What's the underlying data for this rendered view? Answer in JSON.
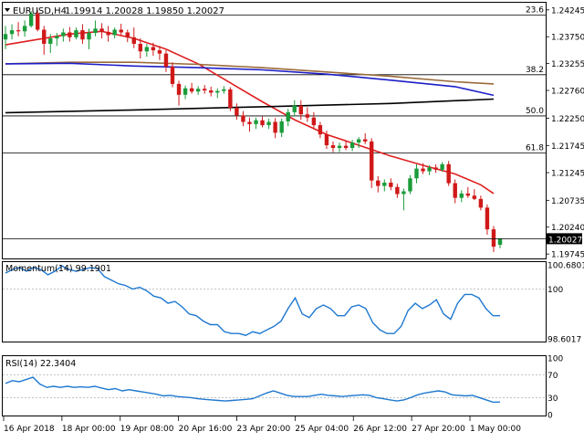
{
  "chart_data": [
    {
      "type": "candlestick",
      "title": "EURUSD,H4",
      "ohlc_readout": "1.19914 1.20028 1.19850 1.20027",
      "current_price_label": "1.20027",
      "ylim": [
        1.1968,
        1.2436
      ],
      "y_ticks": [
        "1.24245",
        "1.23750",
        "1.23255",
        "1.22760",
        "1.22250",
        "1.21745",
        "1.21245",
        "1.20735",
        "1.20240",
        "1.19745"
      ],
      "x_tick_labels": [
        "16 Apr 2018",
        "18 Apr 00:00",
        "19 Apr 08:00",
        "20 Apr 16:00",
        "23 Apr 20:00",
        "25 Apr 04:00",
        "26 Apr 12:00",
        "27 Apr 20:00",
        "1 May 00:00"
      ],
      "fib_levels": [
        {
          "label": "23.6",
          "value": 1.2415
        },
        {
          "label": "38.2",
          "value": 1.2305
        },
        {
          "label": "50.0",
          "value": 1.2229
        },
        {
          "label": "61.8",
          "value": 1.2161
        }
      ],
      "price_line": 1.20027,
      "candles": [
        {
          "o": 1.237,
          "h": 1.2395,
          "l": 1.2352,
          "c": 1.238
        },
        {
          "o": 1.238,
          "h": 1.2398,
          "l": 1.237,
          "c": 1.2387
        },
        {
          "o": 1.2387,
          "h": 1.2402,
          "l": 1.2376,
          "c": 1.2385
        },
        {
          "o": 1.2385,
          "h": 1.2405,
          "l": 1.2375,
          "c": 1.2395
        },
        {
          "o": 1.2395,
          "h": 1.2422,
          "l": 1.2392,
          "c": 1.2418
        },
        {
          "o": 1.2418,
          "h": 1.2424,
          "l": 1.2385,
          "c": 1.2388
        },
        {
          "o": 1.2388,
          "h": 1.2395,
          "l": 1.2342,
          "c": 1.2362
        },
        {
          "o": 1.2362,
          "h": 1.238,
          "l": 1.2345,
          "c": 1.2372
        },
        {
          "o": 1.2372,
          "h": 1.2382,
          "l": 1.2358,
          "c": 1.2376
        },
        {
          "o": 1.2376,
          "h": 1.239,
          "l": 1.2366,
          "c": 1.2383
        },
        {
          "o": 1.2383,
          "h": 1.2393,
          "l": 1.2366,
          "c": 1.2374
        },
        {
          "o": 1.2374,
          "h": 1.2392,
          "l": 1.237,
          "c": 1.2387
        },
        {
          "o": 1.2387,
          "h": 1.2398,
          "l": 1.2362,
          "c": 1.237
        },
        {
          "o": 1.237,
          "h": 1.239,
          "l": 1.2352,
          "c": 1.2382
        },
        {
          "o": 1.2382,
          "h": 1.2405,
          "l": 1.2376,
          "c": 1.239
        },
        {
          "o": 1.239,
          "h": 1.24,
          "l": 1.2372,
          "c": 1.2384
        },
        {
          "o": 1.2384,
          "h": 1.2395,
          "l": 1.2366,
          "c": 1.2378
        },
        {
          "o": 1.2378,
          "h": 1.2392,
          "l": 1.2372,
          "c": 1.2388
        },
        {
          "o": 1.2388,
          "h": 1.2399,
          "l": 1.2378,
          "c": 1.2383
        },
        {
          "o": 1.2383,
          "h": 1.2388,
          "l": 1.2365,
          "c": 1.2374
        },
        {
          "o": 1.2374,
          "h": 1.2392,
          "l": 1.2354,
          "c": 1.2362
        },
        {
          "o": 1.2362,
          "h": 1.2372,
          "l": 1.2335,
          "c": 1.2348
        },
        {
          "o": 1.2348,
          "h": 1.2362,
          "l": 1.2338,
          "c": 1.2356
        },
        {
          "o": 1.2356,
          "h": 1.2364,
          "l": 1.234,
          "c": 1.235
        },
        {
          "o": 1.235,
          "h": 1.2358,
          "l": 1.2332,
          "c": 1.2344
        },
        {
          "o": 1.2344,
          "h": 1.235,
          "l": 1.231,
          "c": 1.232
        },
        {
          "o": 1.232,
          "h": 1.2328,
          "l": 1.2282,
          "c": 1.2288
        },
        {
          "o": 1.2288,
          "h": 1.2294,
          "l": 1.2248,
          "c": 1.2268
        },
        {
          "o": 1.2268,
          "h": 1.2285,
          "l": 1.226,
          "c": 1.228
        },
        {
          "o": 1.228,
          "h": 1.229,
          "l": 1.227,
          "c": 1.2274
        },
        {
          "o": 1.2274,
          "h": 1.2284,
          "l": 1.2268,
          "c": 1.2279
        },
        {
          "o": 1.2279,
          "h": 1.2286,
          "l": 1.227,
          "c": 1.2276
        },
        {
          "o": 1.2276,
          "h": 1.2283,
          "l": 1.2265,
          "c": 1.2272
        },
        {
          "o": 1.2272,
          "h": 1.228,
          "l": 1.2262,
          "c": 1.2275
        },
        {
          "o": 1.2275,
          "h": 1.2284,
          "l": 1.227,
          "c": 1.2278
        },
        {
          "o": 1.2278,
          "h": 1.2282,
          "l": 1.2238,
          "c": 1.2244
        },
        {
          "o": 1.2244,
          "h": 1.2252,
          "l": 1.2222,
          "c": 1.223
        },
        {
          "o": 1.223,
          "h": 1.2238,
          "l": 1.221,
          "c": 1.2218
        },
        {
          "o": 1.2218,
          "h": 1.2226,
          "l": 1.22,
          "c": 1.2214
        },
        {
          "o": 1.2214,
          "h": 1.2226,
          "l": 1.2205,
          "c": 1.2221
        },
        {
          "o": 1.2221,
          "h": 1.2228,
          "l": 1.2208,
          "c": 1.2212
        },
        {
          "o": 1.2212,
          "h": 1.2224,
          "l": 1.2205,
          "c": 1.2218
        },
        {
          "o": 1.2218,
          "h": 1.2225,
          "l": 1.2188,
          "c": 1.2198
        },
        {
          "o": 1.2198,
          "h": 1.2224,
          "l": 1.219,
          "c": 1.2219
        },
        {
          "o": 1.2219,
          "h": 1.2242,
          "l": 1.221,
          "c": 1.2236
        },
        {
          "o": 1.2236,
          "h": 1.2258,
          "l": 1.2228,
          "c": 1.2248
        },
        {
          "o": 1.2248,
          "h": 1.2258,
          "l": 1.2222,
          "c": 1.2232
        },
        {
          "o": 1.2232,
          "h": 1.2245,
          "l": 1.2218,
          "c": 1.2226
        },
        {
          "o": 1.2226,
          "h": 1.2236,
          "l": 1.2205,
          "c": 1.2212
        },
        {
          "o": 1.2212,
          "h": 1.2218,
          "l": 1.2188,
          "c": 1.2195
        },
        {
          "o": 1.2195,
          "h": 1.2202,
          "l": 1.2168,
          "c": 1.2175
        },
        {
          "o": 1.2175,
          "h": 1.2182,
          "l": 1.2162,
          "c": 1.217
        },
        {
          "o": 1.217,
          "h": 1.218,
          "l": 1.2162,
          "c": 1.2174
        },
        {
          "o": 1.2174,
          "h": 1.2182,
          "l": 1.2166,
          "c": 1.217
        },
        {
          "o": 1.217,
          "h": 1.2185,
          "l": 1.2164,
          "c": 1.218
        },
        {
          "o": 1.218,
          "h": 1.219,
          "l": 1.217,
          "c": 1.2186
        },
        {
          "o": 1.2186,
          "h": 1.2197,
          "l": 1.2177,
          "c": 1.2182
        },
        {
          "o": 1.2182,
          "h": 1.2188,
          "l": 1.2096,
          "c": 1.211
        },
        {
          "o": 1.211,
          "h": 1.2118,
          "l": 1.2088,
          "c": 1.21
        },
        {
          "o": 1.21,
          "h": 1.2112,
          "l": 1.209,
          "c": 1.2106
        },
        {
          "o": 1.2106,
          "h": 1.2114,
          "l": 1.2092,
          "c": 1.2098
        },
        {
          "o": 1.2098,
          "h": 1.2104,
          "l": 1.2078,
          "c": 1.2085
        },
        {
          "o": 1.2085,
          "h": 1.2095,
          "l": 1.2055,
          "c": 1.209
        },
        {
          "o": 1.209,
          "h": 1.212,
          "l": 1.2085,
          "c": 1.2114
        },
        {
          "o": 1.2114,
          "h": 1.214,
          "l": 1.2105,
          "c": 1.2132
        },
        {
          "o": 1.2132,
          "h": 1.2142,
          "l": 1.2122,
          "c": 1.2127
        },
        {
          "o": 1.2127,
          "h": 1.2138,
          "l": 1.212,
          "c": 1.2134
        },
        {
          "o": 1.2134,
          "h": 1.214,
          "l": 1.2124,
          "c": 1.213
        },
        {
          "o": 1.213,
          "h": 1.2144,
          "l": 1.2126,
          "c": 1.214
        },
        {
          "o": 1.214,
          "h": 1.2146,
          "l": 1.21,
          "c": 1.2105
        },
        {
          "o": 1.2105,
          "h": 1.2112,
          "l": 1.2068,
          "c": 1.2078
        },
        {
          "o": 1.2078,
          "h": 1.2092,
          "l": 1.207,
          "c": 1.2086
        },
        {
          "o": 1.2086,
          "h": 1.2098,
          "l": 1.2078,
          "c": 1.2082
        },
        {
          "o": 1.2082,
          "h": 1.2094,
          "l": 1.2074,
          "c": 1.2076
        },
        {
          "o": 1.2076,
          "h": 1.2082,
          "l": 1.2055,
          "c": 1.206
        },
        {
          "o": 1.206,
          "h": 1.2066,
          "l": 1.201,
          "c": 1.202
        },
        {
          "o": 1.202,
          "h": 1.2026,
          "l": 1.1978,
          "c": 1.1988
        },
        {
          "o": 1.19914,
          "h": 1.20028,
          "l": 1.1985,
          "c": 1.20027
        }
      ],
      "overlays": [
        {
          "name": "ema-red",
          "color": "#e02020",
          "points": [
            [
              0,
              1.236
            ],
            [
              5,
              1.237
            ],
            [
              10,
              1.238
            ],
            [
              15,
              1.2385
            ],
            [
              20,
              1.2372
            ],
            [
              25,
              1.2352
            ],
            [
              30,
              1.2325
            ],
            [
              35,
              1.229
            ],
            [
              40,
              1.2255
            ],
            [
              45,
              1.2222
            ],
            [
              50,
              1.2195
            ],
            [
              55,
              1.2175
            ],
            [
              60,
              1.2155
            ],
            [
              65,
              1.2138
            ],
            [
              70,
              1.2122
            ],
            [
              74,
              1.2102
            ],
            [
              76,
              1.2086
            ]
          ]
        },
        {
          "name": "sma-brown",
          "color": "#9a6a3a",
          "points": [
            [
              0,
              1.2325
            ],
            [
              10,
              1.2328
            ],
            [
              20,
              1.2328
            ],
            [
              30,
              1.2324
            ],
            [
              40,
              1.2318
            ],
            [
              50,
              1.231
            ],
            [
              60,
              1.2302
            ],
            [
              70,
              1.2292
            ],
            [
              76,
              1.2288
            ]
          ]
        },
        {
          "name": "sma-blue",
          "color": "#1e1ec8",
          "points": [
            [
              0,
              1.2325
            ],
            [
              10,
              1.2326
            ],
            [
              20,
              1.2321
            ],
            [
              30,
              1.2318
            ],
            [
              40,
              1.2314
            ],
            [
              50,
              1.2306
            ],
            [
              60,
              1.2295
            ],
            [
              70,
              1.2283
            ],
            [
              76,
              1.2267
            ]
          ]
        },
        {
          "name": "sma-black",
          "color": "#000000",
          "points": [
            [
              0,
              1.2235
            ],
            [
              20,
              1.224
            ],
            [
              40,
              1.2246
            ],
            [
              60,
              1.2252
            ],
            [
              76,
              1.226
            ]
          ]
        }
      ]
    },
    {
      "type": "line",
      "title": "Momentum(14) 99.1901",
      "ylim": [
        98.6017,
        100.6801
      ],
      "y_ticks": [
        "100.6801",
        "100",
        "98.6017"
      ],
      "series": [
        {
          "color": "#1e78d0",
          "values": [
            100.45,
            100.55,
            100.6,
            100.5,
            100.6,
            100.55,
            100.4,
            100.5,
            100.65,
            100.55,
            100.5,
            100.55,
            100.6,
            100.58,
            100.35,
            100.25,
            100.15,
            100.1,
            100.0,
            100.05,
            99.95,
            99.8,
            99.75,
            99.6,
            99.65,
            99.5,
            99.3,
            99.25,
            99.1,
            99.0,
            99.0,
            98.8,
            98.75,
            98.75,
            98.7,
            98.8,
            98.75,
            98.85,
            98.95,
            99.1,
            99.45,
            99.75,
            99.3,
            99.2,
            99.45,
            99.55,
            99.45,
            99.25,
            99.25,
            99.5,
            99.55,
            99.45,
            99.05,
            98.85,
            98.75,
            98.75,
            98.95,
            99.4,
            99.6,
            99.45,
            99.55,
            99.7,
            99.3,
            99.15,
            99.6,
            99.85,
            99.85,
            99.75,
            99.45,
            99.25,
            99.25
          ]
        }
      ]
    },
    {
      "type": "line",
      "title": "RSI(14) 22.3404",
      "ylim": [
        0,
        100
      ],
      "y_ticks": [
        "100",
        "70",
        "30",
        "0"
      ],
      "levels": [
        70,
        30
      ],
      "series": [
        {
          "color": "#1e78d0",
          "values": [
            55,
            60,
            58,
            62,
            66,
            54,
            48,
            50,
            48,
            50,
            48,
            49,
            48,
            50,
            47,
            44,
            46,
            42,
            44,
            42,
            40,
            38,
            36,
            33,
            34,
            32,
            31,
            30,
            28,
            27,
            26,
            25,
            24,
            25,
            26,
            27,
            28,
            33,
            38,
            42,
            38,
            34,
            32,
            32,
            32,
            34,
            36,
            34,
            33,
            32,
            33,
            34,
            35,
            34,
            30,
            28,
            26,
            24,
            26,
            30,
            35,
            38,
            40,
            42,
            40,
            35,
            34,
            33,
            34,
            30,
            26,
            22,
            22.3
          ]
        }
      ]
    }
  ]
}
